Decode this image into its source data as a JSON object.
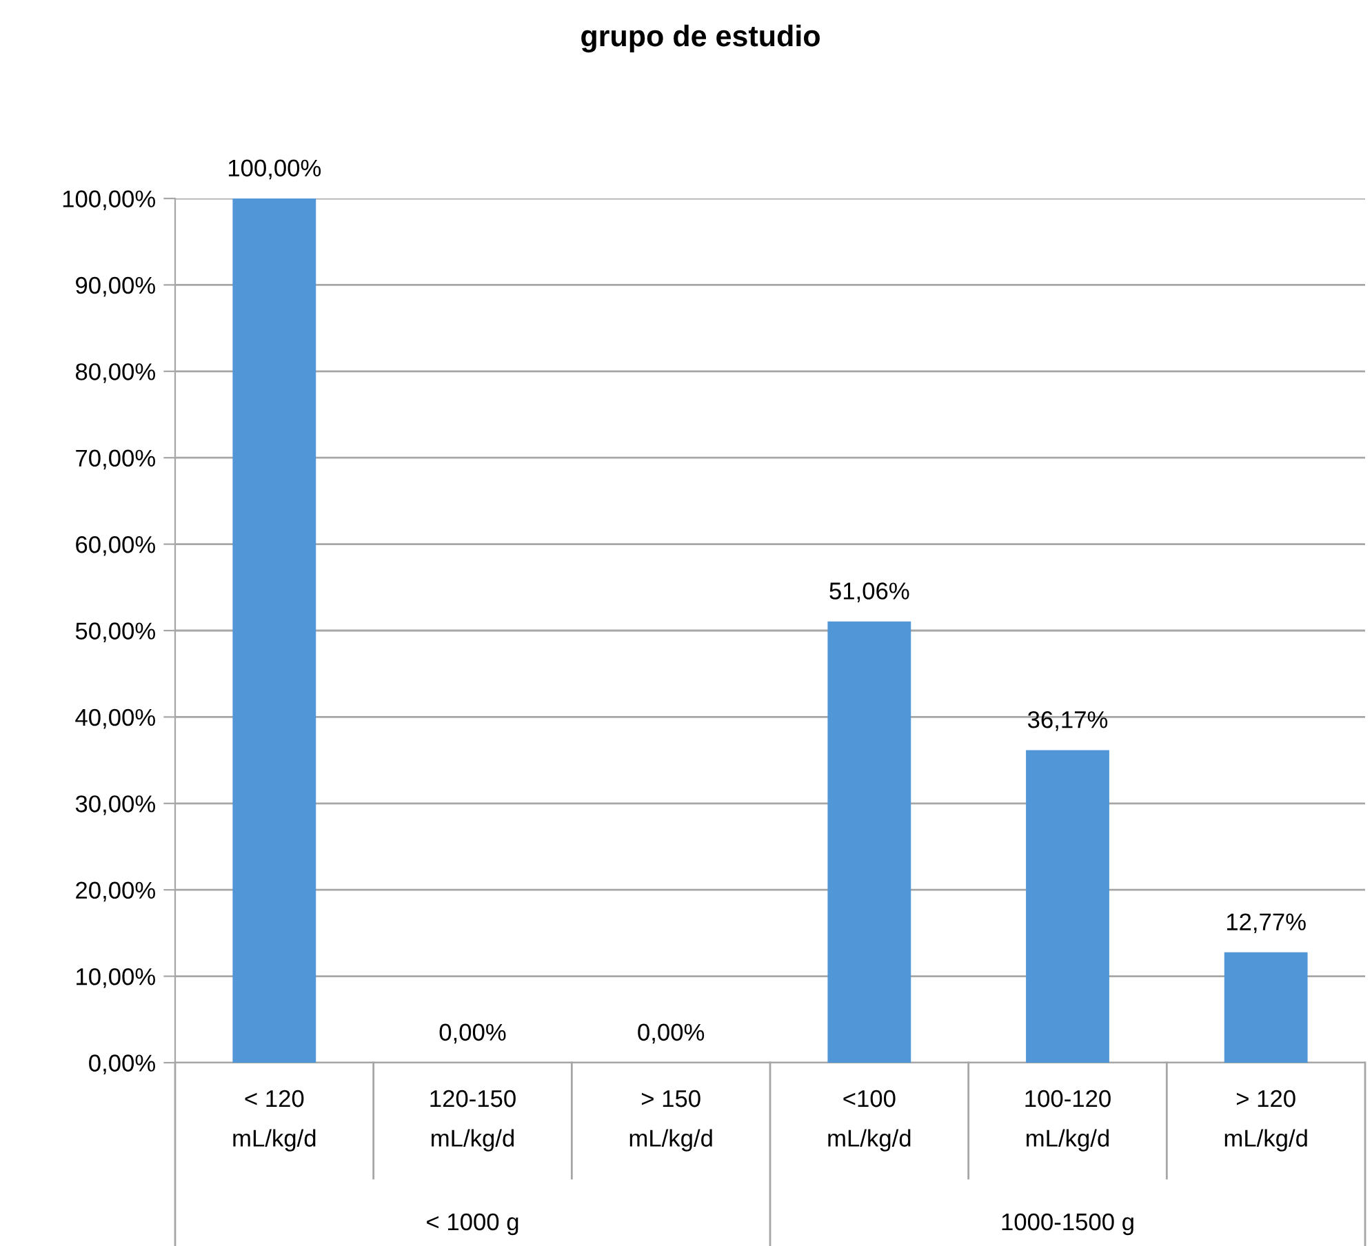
{
  "chart_data": {
    "type": "bar",
    "title": "grupo de estudio",
    "categories": [
      "< 120\nmL/kg/d",
      "120-150\nmL/kg/d",
      "> 150\nmL/kg/d",
      "<100\nmL/kg/d",
      "100-120\nmL/kg/d",
      "> 120\nmL/kg/d"
    ],
    "values": [
      100,
      0,
      0,
      51.06,
      36.17,
      12.77
    ],
    "color": "#5196d6",
    "value_labels": [
      "100,00%",
      "0,00%",
      "0,00%",
      "51,06%",
      "36,17%",
      "12,77%"
    ],
    "ylim": [
      0,
      100
    ],
    "yticks": [
      {
        "value": 0,
        "label": "0,00%"
      },
      {
        "value": 10,
        "label": "10,00%"
      },
      {
        "value": 20,
        "label": "20,00%"
      },
      {
        "value": 30,
        "label": "30,00%"
      },
      {
        "value": 40,
        "label": "40,00%"
      },
      {
        "value": 50,
        "label": "50,00%"
      },
      {
        "value": 60,
        "label": "60,00%"
      },
      {
        "value": 70,
        "label": "70,00%"
      },
      {
        "value": 80,
        "label": "80,00%"
      },
      {
        "value": 90,
        "label": "90,00%"
      },
      {
        "value": 100,
        "label": "100,00%"
      }
    ],
    "grid": "y",
    "annotations": [
      "< 1000 g",
      "1000-1500 g"
    ]
  }
}
